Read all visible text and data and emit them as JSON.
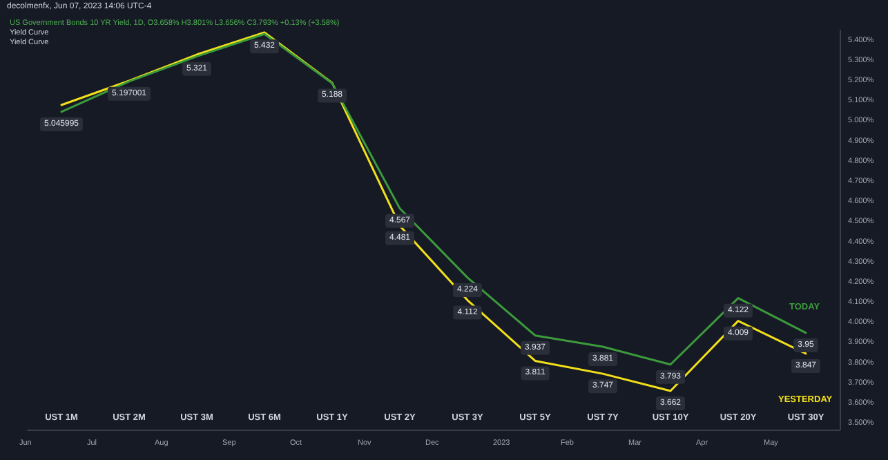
{
  "chart_data": {
    "type": "line",
    "title": "decolmenfx, Jun 07, 2023 14:06 UTC-4",
    "subtitle": "US Government Bonds 10 YR Yield, 1D, O3.658% H3.801% L3.656% C3.793% +0.13% (+3.58%)",
    "annotations": [
      "Yield Curve",
      "Yield Curve",
      "Jun",
      "Jul",
      "Aug",
      "Sep",
      "Oct",
      "Nov",
      "Dec",
      "2023",
      "Feb",
      "Mar",
      "Apr",
      "May"
    ],
    "categories": [
      "UST 1M",
      "UST 2M",
      "UST 3M",
      "UST 6M",
      "UST 1Y",
      "UST 2Y",
      "UST 3Y",
      "UST 5Y",
      "UST 7Y",
      "UST 10Y",
      "UST 20Y",
      "UST 30Y"
    ],
    "series": [
      {
        "name": "TODAY",
        "color": "#3c9a3c",
        "values": [
          5.045995,
          5.197001,
          5.321,
          5.432,
          5.188,
          4.567,
          4.224,
          3.937,
          3.881,
          3.793,
          4.122,
          3.95
        ],
        "value_labels": [
          "5.045995",
          "5.197001",
          "5.321",
          "5.432",
          "5.188",
          "4.567",
          "4.224",
          "3.937",
          "3.881",
          "3.793",
          "4.122",
          "3.95"
        ]
      },
      {
        "name": "YESTERDAY",
        "color": "#f2e01a",
        "values": [
          5.08,
          5.2,
          5.33,
          5.44,
          5.19,
          4.481,
          4.112,
          3.811,
          3.747,
          3.662,
          4.009,
          3.847
        ],
        "value_labels": [
          null,
          null,
          null,
          null,
          null,
          "4.481",
          "4.112",
          "3.811",
          "3.747",
          "3.662",
          "4.009",
          "3.847"
        ]
      }
    ],
    "ylim": [
      3.47,
      5.45
    ],
    "yticks": [
      {
        "value": 3.5,
        "label": "3.500%"
      },
      {
        "value": 3.6,
        "label": "3.600%"
      },
      {
        "value": 3.7,
        "label": "3.700%"
      },
      {
        "value": 3.8,
        "label": "3.800%"
      },
      {
        "value": 3.9,
        "label": "3.900%"
      },
      {
        "value": 4.0,
        "label": "4.000%"
      },
      {
        "value": 4.1,
        "label": "4.100%"
      },
      {
        "value": 4.2,
        "label": "4.200%"
      },
      {
        "value": 4.3,
        "label": "4.300%"
      },
      {
        "value": 4.4,
        "label": "4.400%"
      },
      {
        "value": 4.5,
        "label": "4.500%"
      },
      {
        "value": 4.6,
        "label": "4.600%"
      },
      {
        "value": 4.7,
        "label": "4.700%"
      },
      {
        "value": 4.8,
        "label": "4.800%"
      },
      {
        "value": 4.9,
        "label": "4.900%"
      },
      {
        "value": 5.0,
        "label": "5.000%"
      },
      {
        "value": 5.1,
        "label": "5.100%"
      },
      {
        "value": 5.2,
        "label": "5.200%"
      },
      {
        "value": 5.3,
        "label": "5.300%"
      },
      {
        "value": 5.4,
        "label": "5.400%"
      }
    ],
    "grid": false,
    "legend": false,
    "marker": "none",
    "line_style": "solid"
  }
}
